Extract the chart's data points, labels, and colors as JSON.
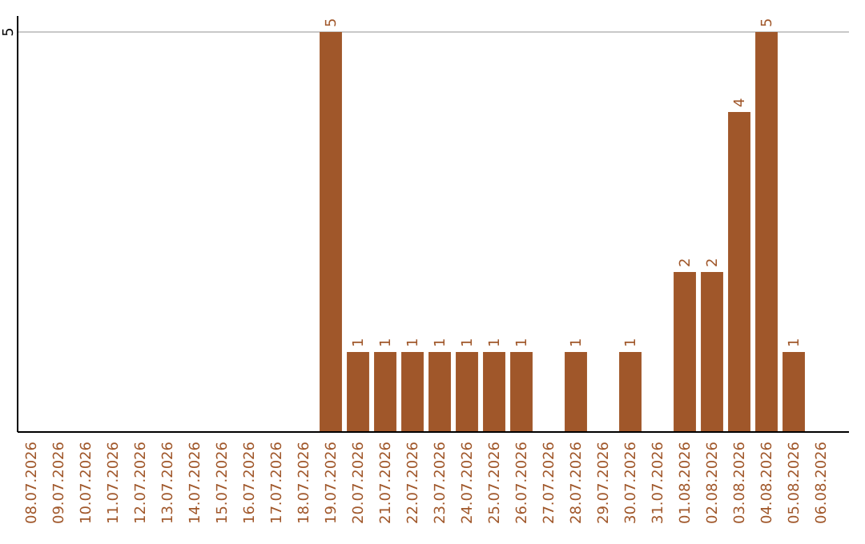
{
  "chart_data": {
    "type": "bar",
    "categories": [
      "08.07.2026",
      "09.07.2026",
      "10.07.2026",
      "11.07.2026",
      "12.07.2026",
      "13.07.2026",
      "14.07.2026",
      "15.07.2026",
      "16.07.2026",
      "17.07.2026",
      "18.07.2026",
      "19.07.2026",
      "20.07.2026",
      "21.07.2026",
      "22.07.2026",
      "23.07.2026",
      "24.07.2026",
      "25.07.2026",
      "26.07.2026",
      "27.07.2026",
      "28.07.2026",
      "29.07.2026",
      "30.07.2026",
      "31.07.2026",
      "01.08.2026",
      "02.08.2026",
      "03.08.2026",
      "04.08.2026",
      "05.08.2026",
      "06.08.2026"
    ],
    "values": [
      null,
      null,
      null,
      null,
      null,
      null,
      null,
      null,
      null,
      null,
      null,
      5,
      1,
      1,
      1,
      1,
      1,
      1,
      1,
      null,
      1,
      null,
      1,
      null,
      2,
      2,
      4,
      5,
      1,
      null
    ],
    "color": "#a0572a",
    "ylim": [
      0,
      5
    ],
    "yticks": [
      5
    ],
    "ref_lines": [
      {
        "axis": "y",
        "value": 5,
        "color": "#c8c8c8"
      }
    ],
    "data_labels": true
  }
}
